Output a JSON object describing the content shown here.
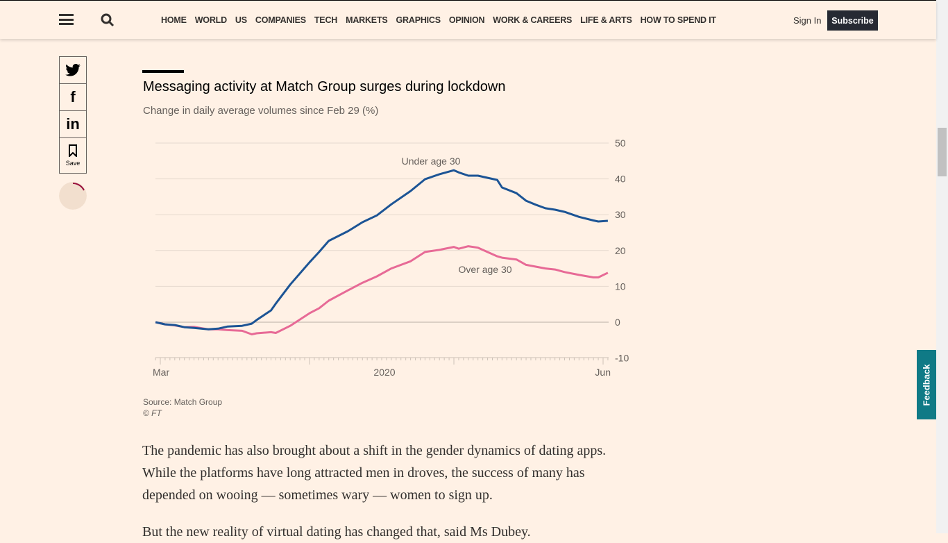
{
  "header": {
    "nav": [
      "HOME",
      "WORLD",
      "US",
      "COMPANIES",
      "TECH",
      "MARKETS",
      "GRAPHICS",
      "OPINION",
      "WORK & CAREERS",
      "LIFE & ARTS",
      "HOW TO SPEND IT"
    ],
    "sign_in": "Sign In",
    "subscribe": "Subscribe"
  },
  "share": {
    "save_label": "Save"
  },
  "feedback": "Feedback",
  "chart_data": {
    "type": "line",
    "title": "Messaging activity at Match Group surges during lockdown",
    "subtitle": "Change in daily average volumes since Feb 29 (%)",
    "ylim": [
      -10,
      50
    ],
    "yticks": [
      "50",
      "40",
      "30",
      "20",
      "10",
      "0",
      "-10"
    ],
    "xticks": [
      "Mar",
      "2020",
      "Jun"
    ],
    "grid": true,
    "x": [
      "2020-02-29",
      "2020-03-02",
      "2020-03-04",
      "2020-03-06",
      "2020-03-08",
      "2020-03-11",
      "2020-03-13",
      "2020-03-15",
      "2020-03-18",
      "2020-03-20",
      "2020-03-21",
      "2020-03-24",
      "2020-03-25",
      "2020-03-28",
      "2020-04-01",
      "2020-04-03",
      "2020-04-05",
      "2020-04-09",
      "2020-04-12",
      "2020-04-15",
      "2020-04-18",
      "2020-04-22",
      "2020-04-25",
      "2020-04-28",
      "2020-05-01",
      "2020-05-02",
      "2020-05-04",
      "2020-05-06",
      "2020-05-10",
      "2020-05-11",
      "2020-05-14",
      "2020-05-16",
      "2020-05-18",
      "2020-05-20",
      "2020-05-22",
      "2020-05-24",
      "2020-05-27",
      "2020-05-30",
      "2020-05-31",
      "2020-06-02"
    ],
    "series": [
      {
        "name": "Under age 30",
        "color": "#1c5495",
        "values": [
          0,
          -0.6,
          -0.8,
          -1.4,
          -1.6,
          -2,
          -1.8,
          -1.2,
          -1,
          -0.4,
          0.6,
          3.3,
          5.2,
          10.5,
          16.7,
          19.6,
          22.7,
          25.4,
          27.9,
          29.8,
          32.9,
          36.6,
          39.9,
          41.3,
          42.4,
          41.8,
          40.9,
          40.9,
          39.7,
          37.6,
          36,
          33.9,
          32.8,
          31.8,
          31.4,
          30.8,
          29.4,
          28.4,
          28.1,
          28.3
        ]
      },
      {
        "name": "Over age 30",
        "color": "#e76a96",
        "values": [
          0,
          -0.6,
          -0.9,
          -1.4,
          -1.3,
          -2,
          -2,
          -2.2,
          -2.4,
          -3.4,
          -3.1,
          -2.8,
          -3,
          -1,
          2.5,
          3.9,
          6,
          8.9,
          11,
          12.8,
          15,
          17,
          19.6,
          20.2,
          21,
          20.5,
          21.2,
          20.8,
          18.4,
          18,
          17.5,
          16,
          15.5,
          15,
          14.7,
          14,
          13.2,
          12.5,
          12.5,
          13.8
        ]
      }
    ],
    "source": "Source: Match Group",
    "credit": "© FT"
  },
  "article": {
    "p1": "The pandemic has also brought about a shift in the gender dynamics of dating apps. While the platforms have long attracted men in droves, the success of many has depended on wooing — sometimes wary — women to sign up.",
    "p2": "But the new reality of virtual dating has changed that, said Ms Dubey."
  }
}
